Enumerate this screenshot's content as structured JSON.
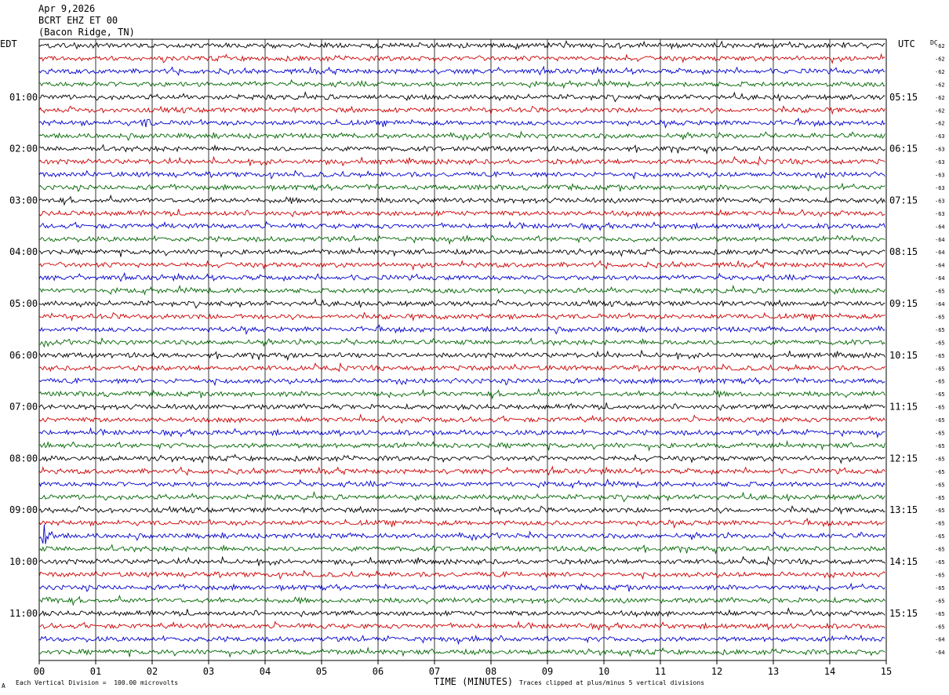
{
  "header": {
    "date": "Apr 9,2026",
    "station": "BCRT EHZ ET 00",
    "location": "(Bacon Ridge, TN)"
  },
  "labels": {
    "left_tz": "EDT",
    "right_tz": "UTC",
    "dc_label": "DC"
  },
  "footer": {
    "scale_note": "Each Vertical Division =  100.00 microvolts",
    "x_axis_title": "TIME (MINUTES)",
    "clip_note": "Traces clipped at plus/minus 5 vertical divisions",
    "corner_mark": "A"
  },
  "colors": {
    "trace_cycle": [
      "#000000",
      "#cc0000",
      "#0000cc",
      "#006600"
    ],
    "grid": "#000000",
    "background": "#ffffff"
  },
  "chart_data": {
    "type": "line",
    "title": "BCRT EHZ ET 00 (Bacon Ridge, TN)",
    "xlabel": "TIME (MINUTES)",
    "xlim": [
      0,
      15
    ],
    "x_ticks": [
      "00",
      "01",
      "02",
      "03",
      "04",
      "05",
      "06",
      "07",
      "08",
      "09",
      "10",
      "11",
      "12",
      "13",
      "14",
      "15"
    ],
    "row_count": 48,
    "row_minutes": 15,
    "left_hour_labels": [
      {
        "row": 4,
        "text": "01:00"
      },
      {
        "row": 8,
        "text": "02:00"
      },
      {
        "row": 12,
        "text": "03:00"
      },
      {
        "row": 16,
        "text": "04:00"
      },
      {
        "row": 20,
        "text": "05:00"
      },
      {
        "row": 24,
        "text": "06:00"
      },
      {
        "row": 28,
        "text": "07:00"
      },
      {
        "row": 32,
        "text": "08:00"
      },
      {
        "row": 36,
        "text": "09:00"
      },
      {
        "row": 40,
        "text": "10:00"
      },
      {
        "row": 44,
        "text": "11:00"
      }
    ],
    "right_hour_labels": [
      {
        "row": 4,
        "text": "05:15"
      },
      {
        "row": 8,
        "text": "06:15"
      },
      {
        "row": 12,
        "text": "07:15"
      },
      {
        "row": 16,
        "text": "08:15"
      },
      {
        "row": 20,
        "text": "09:15"
      },
      {
        "row": 24,
        "text": "10:15"
      },
      {
        "row": 28,
        "text": "11:15"
      },
      {
        "row": 32,
        "text": "12:15"
      },
      {
        "row": 36,
        "text": "13:15"
      },
      {
        "row": 40,
        "text": "14:15"
      },
      {
        "row": 44,
        "text": "15:15"
      }
    ],
    "dc_offsets": [
      "-62",
      "-62",
      "-62",
      "-62",
      "-62",
      "-62",
      "-62",
      "-63",
      "-63",
      "-63",
      "-63",
      "-63",
      "-63",
      "-63",
      "-64",
      "-64",
      "-64",
      "-64",
      "-64",
      "-65",
      "-64",
      "-65",
      "-65",
      "-65",
      "-65",
      "-65",
      "-65",
      "-65",
      "-65",
      "-65",
      "-65",
      "-65",
      "-65",
      "-65",
      "-65",
      "-65",
      "-65",
      "-65",
      "-65",
      "-65",
      "-65",
      "-65",
      "-65",
      "-65",
      "-65",
      "-65",
      "-64",
      "-64"
    ],
    "events": [
      {
        "row": 6,
        "minute": 1.9,
        "note": "small burst"
      },
      {
        "row": 38,
        "minute": 0.1,
        "note": "spike"
      },
      {
        "row": 43,
        "minute": 0.2,
        "note": "small burst"
      }
    ],
    "grid": true
  }
}
